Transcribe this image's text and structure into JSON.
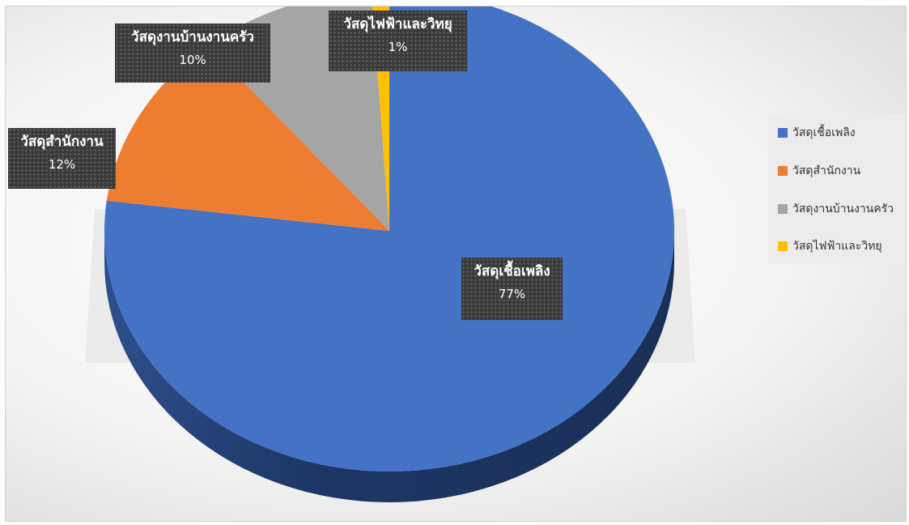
{
  "chart_data": {
    "type": "pie",
    "title": "",
    "categories": [
      "วัสดุเชื้อเพลิง",
      "วัสดุสำนักงาน",
      "วัสดุงานบ้านงานครัว",
      "วัสดุไฟฟ้าและวิทยุ"
    ],
    "values": [
      77,
      12,
      10,
      1
    ],
    "data_labels": [
      "77%",
      "12%",
      "10%",
      "1%"
    ],
    "colors": [
      "#4472C4",
      "#ED7D31",
      "#A5A5A5",
      "#FFC000"
    ],
    "legend_position": "right"
  },
  "legend": {
    "items": [
      {
        "label": "วัสดุเชื้อเพลิง",
        "color": "#4472C4"
      },
      {
        "label": "วัสดุสำนักงาน",
        "color": "#ED7D31"
      },
      {
        "label": "วัสดุงานบ้านงานครัว",
        "color": "#A5A5A5"
      },
      {
        "label": "วัสดุไฟฟ้าและวิทยุ",
        "color": "#FFC000"
      }
    ]
  },
  "labels": [
    {
      "category": "วัสดุเชื้อเพลิง",
      "percent": "77%"
    },
    {
      "category": "วัสดุสำนักงาน",
      "percent": "12%"
    },
    {
      "category": "วัสดุงานบ้านงานครัว",
      "percent": "10%"
    },
    {
      "category": "วัสดุไฟฟ้าและวิทยุ",
      "percent": "1%"
    }
  ]
}
